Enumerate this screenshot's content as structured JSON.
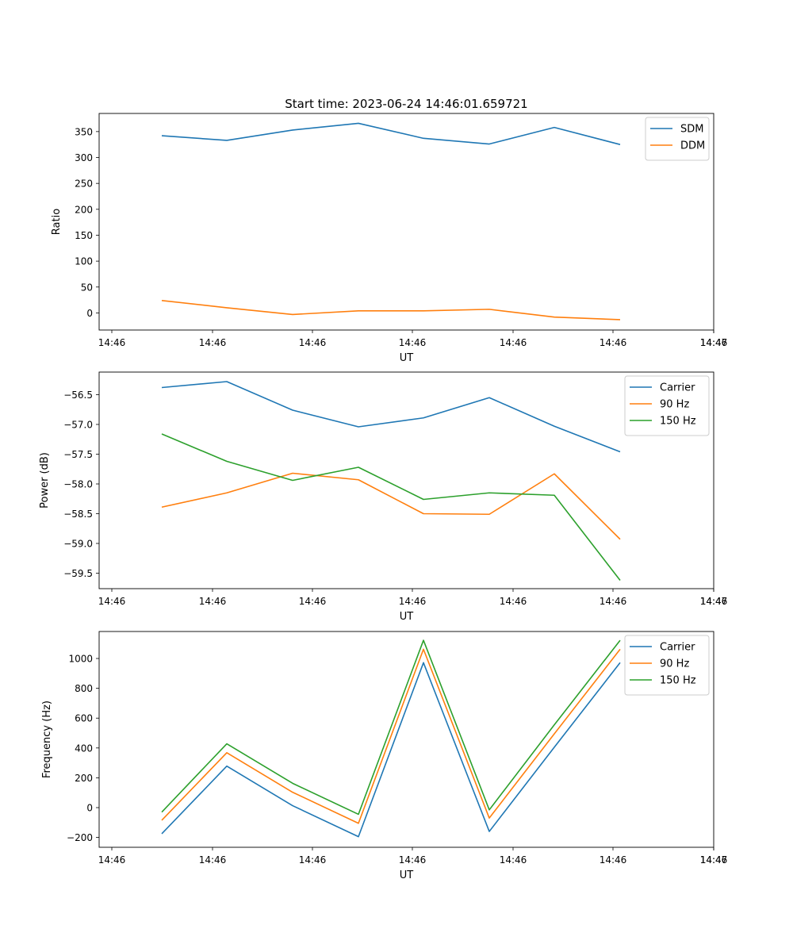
{
  "chart_data": [
    {
      "type": "line",
      "title": "Start time: 2023-06-24 14:46:01.659721",
      "xlabel": "UT",
      "ylabel": "Ratio",
      "x_tick_labels": [
        "14:46",
        "14:46",
        "14:46",
        "14:46",
        "14:46",
        "14:46",
        "14:46",
        "14:47"
      ],
      "y_ticks": [
        0,
        50,
        100,
        150,
        200,
        250,
        300,
        350
      ],
      "ylim": [
        -33,
        385
      ],
      "legend_position": "top-right",
      "series": [
        {
          "name": "SDM",
          "color": "#1f77b4",
          "values": [
            342,
            333,
            353,
            366,
            337,
            326,
            358,
            325
          ]
        },
        {
          "name": "DDM",
          "color": "#ff7f0e",
          "values": [
            24,
            10,
            -3,
            4,
            4,
            7,
            -8,
            -13
          ]
        }
      ]
    },
    {
      "type": "line",
      "title": "",
      "xlabel": "UT",
      "ylabel": "Power (dB)",
      "x_tick_labels": [
        "14:46",
        "14:46",
        "14:46",
        "14:46",
        "14:46",
        "14:46",
        "14:46",
        "14:47"
      ],
      "y_ticks": [
        -59.5,
        -59.0,
        -58.5,
        -58.0,
        -57.5,
        -57.0,
        -56.5
      ],
      "y_tick_labels": [
        "−59.5",
        "−59.0",
        "−58.5",
        "−58.0",
        "−57.5",
        "−57.0",
        "−56.5"
      ],
      "ylim": [
        -59.76,
        -56.12
      ],
      "legend_position": "top-right",
      "series": [
        {
          "name": "Carrier",
          "color": "#1f77b4",
          "values": [
            -56.38,
            -56.28,
            -56.76,
            -57.04,
            -56.89,
            -56.55,
            -57.03,
            -57.46
          ]
        },
        {
          "name": "90 Hz",
          "color": "#ff7f0e",
          "values": [
            -58.39,
            -58.15,
            -57.82,
            -57.93,
            -58.5,
            -58.51,
            -57.83,
            -58.93
          ]
        },
        {
          "name": "150 Hz",
          "color": "#2ca02c",
          "values": [
            -57.16,
            -57.62,
            -57.94,
            -57.72,
            -58.26,
            -58.15,
            -58.19,
            -59.62
          ]
        }
      ]
    },
    {
      "type": "line",
      "title": "",
      "xlabel": "UT",
      "ylabel": "Frequency (Hz)",
      "x_tick_labels": [
        "14:46",
        "14:46",
        "14:46",
        "14:46",
        "14:46",
        "14:46",
        "14:46",
        "14:47"
      ],
      "y_ticks": [
        -200,
        0,
        200,
        400,
        600,
        800,
        1000
      ],
      "y_tick_labels": [
        "−200",
        "0",
        "200",
        "400",
        "600",
        "800",
        "1000"
      ],
      "ylim": [
        -266,
        1181
      ],
      "legend_position": "top-right",
      "series": [
        {
          "name": "Carrier",
          "color": "#1f77b4",
          "values": [
            -175,
            278,
            13,
            -195,
            972,
            -160,
            405,
            972
          ]
        },
        {
          "name": "90 Hz",
          "color": "#ff7f0e",
          "values": [
            -85,
            368,
            103,
            -105,
            1062,
            -70,
            495,
            1062
          ]
        },
        {
          "name": "150 Hz",
          "color": "#2ca02c",
          "values": [
            -30,
            428,
            163,
            -45,
            1122,
            -15,
            555,
            1122
          ]
        }
      ]
    }
  ]
}
